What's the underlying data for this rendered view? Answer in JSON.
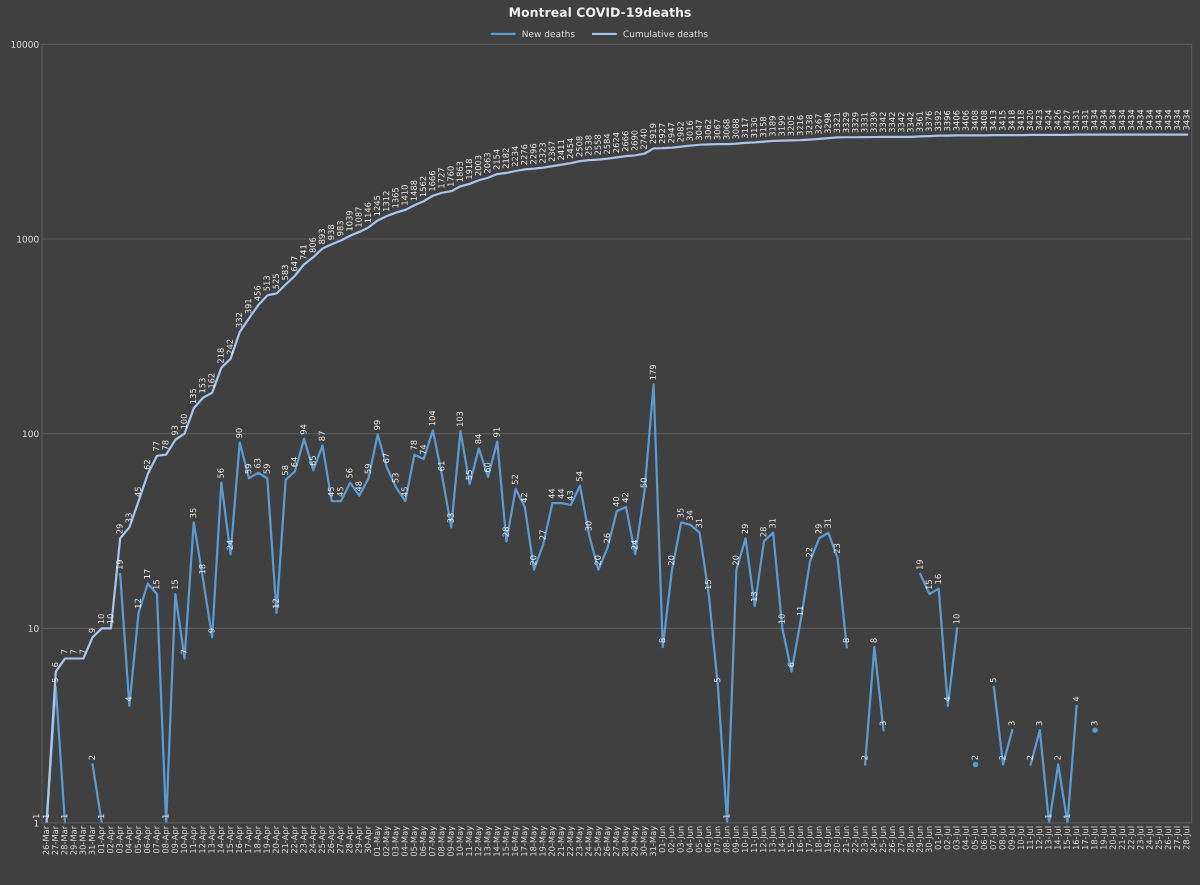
{
  "chart_data": {
    "type": "line",
    "title": "Montreal COVID-19deaths",
    "categories": [
      "26-Mar",
      "27-Mar",
      "28-Mar",
      "29-Mar",
      "30-Mar",
      "31-Mar",
      "01-Apr",
      "02-Apr",
      "03-Apr",
      "04-Apr",
      "05-Apr",
      "06-Apr",
      "07-Apr",
      "08-Apr",
      "09-Apr",
      "10-Apr",
      "11-Apr",
      "12-Apr",
      "13-Apr",
      "14-Apr",
      "15-Apr",
      "16-Apr",
      "17-Apr",
      "18-Apr",
      "19-Apr",
      "20-Apr",
      "21-Apr",
      "22-Apr",
      "23-Apr",
      "24-Apr",
      "25-Apr",
      "26-Apr",
      "27-Apr",
      "28-Apr",
      "29-Apr",
      "30-Apr",
      "01-May",
      "02-May",
      "03-May",
      "04-May",
      "05-May",
      "06-May",
      "07-May",
      "08-May",
      "09-May",
      "10-May",
      "11-May",
      "12-May",
      "13-May",
      "14-May",
      "15-May",
      "16-May",
      "17-May",
      "18-May",
      "19-May",
      "20-May",
      "21-May",
      "22-May",
      "23-May",
      "24-May",
      "25-May",
      "26-May",
      "27-May",
      "28-May",
      "29-May",
      "30-May",
      "31-May",
      "01-Jun",
      "02-Jun",
      "03-Jun",
      "04-Jun",
      "05-Jun",
      "06-Jun",
      "07-Jun",
      "08-Jun",
      "09-Jun",
      "10-Jun",
      "11-Jun",
      "12-Jun",
      "13-Jun",
      "14-Jun",
      "15-Jun",
      "16-Jun",
      "17-Jun",
      "18-Jun",
      "19-Jun",
      "20-Jun",
      "21-Jun",
      "22-Jun",
      "23-Jun",
      "24-Jun",
      "25-Jun",
      "26-Jun",
      "27-Jun",
      "28-Jun",
      "29-Jun",
      "30-Jun",
      "01-Jul",
      "02-Jul",
      "03-Jul",
      "04-Jul",
      "05-Jul",
      "06-Jul",
      "07-Jul",
      "08-Jul",
      "09-Jul",
      "10-Jul",
      "11-Jul",
      "12-Jul",
      "13-Jul",
      "14-Jul",
      "15-Jul",
      "16-Jul",
      "17-Jul",
      "18-Jul",
      "19-Jul",
      "20-Jul",
      "21-Jul",
      "22-Jul",
      "23-Jul",
      "24-Jul",
      "25-Jul",
      "26-Jul",
      "27-Jul",
      "28-Jul"
    ],
    "series": [
      {
        "name": "New deaths",
        "color": "#5b9bd5",
        "values": [
          1,
          5,
          1,
          null,
          null,
          2,
          1,
          null,
          19,
          4,
          12,
          17,
          15,
          1,
          15,
          7,
          35,
          18,
          9,
          56,
          24,
          90,
          59,
          63,
          59,
          12,
          58,
          64,
          94,
          65,
          87,
          45,
          45,
          56,
          48,
          59,
          99,
          67,
          53,
          45,
          78,
          74,
          104,
          61,
          33,
          103,
          55,
          84,
          60,
          91,
          28,
          52,
          42,
          20,
          27,
          44,
          44,
          43,
          54,
          30,
          20,
          26,
          40,
          42,
          24,
          50,
          179,
          8,
          20,
          35,
          34,
          31,
          15,
          5,
          1,
          20,
          29,
          13,
          28,
          31,
          10,
          6,
          11,
          22,
          29,
          31,
          23,
          8,
          null,
          2,
          8,
          3,
          null,
          null,
          null,
          19,
          15,
          16,
          4,
          10,
          null,
          2,
          null,
          5,
          2,
          3,
          null,
          2,
          3,
          1,
          2,
          1,
          4,
          null,
          3,
          null,
          null,
          null,
          null,
          null,
          null,
          null,
          null,
          null,
          null
        ]
      },
      {
        "name": "Cumulative deaths",
        "color": "#a9c4e8",
        "values": [
          1,
          6,
          7,
          7,
          7,
          9,
          10,
          10,
          29,
          33,
          45,
          62,
          77,
          78,
          93,
          100,
          135,
          153,
          162,
          218,
          242,
          332,
          391,
          456,
          513,
          525,
          583,
          647,
          741,
          806,
          893,
          938,
          983,
          1039,
          1087,
          1146,
          1245,
          1312,
          1365,
          1410,
          1488,
          1562,
          1666,
          1727,
          1760,
          1863,
          1918,
          2003,
          2063,
          2154,
          2182,
          2234,
          2276,
          2296,
          2323,
          2367,
          2411,
          2454,
          2508,
          2538,
          2558,
          2584,
          2624,
          2666,
          2690,
          2740,
          2919,
          2927,
          2947,
          2982,
          3016,
          3047,
          3062,
          3067,
          3068,
          3088,
          3117,
          3130,
          3158,
          3189,
          3199,
          3205,
          3216,
          3238,
          3267,
          3298,
          3321,
          3329,
          3329,
          3331,
          3339,
          3342,
          3342,
          3342,
          3342,
          3361,
          3376,
          3392,
          3396,
          3406,
          3406,
          3408,
          3408,
          3413,
          3415,
          3418,
          3418,
          3420,
          3423,
          3424,
          3426,
          3427,
          3431,
          3431,
          3434,
          3434,
          3434,
          3434,
          3434,
          3434,
          3434,
          3434,
          3434,
          3434,
          3434
        ]
      }
    ],
    "log": true,
    "ylim": [
      1,
      10000
    ],
    "yticks": [
      1,
      10,
      100,
      1000,
      10000
    ],
    "grid": "y",
    "legend": "top",
    "data_labels": true,
    "marker": "none",
    "line_style": "solid"
  }
}
